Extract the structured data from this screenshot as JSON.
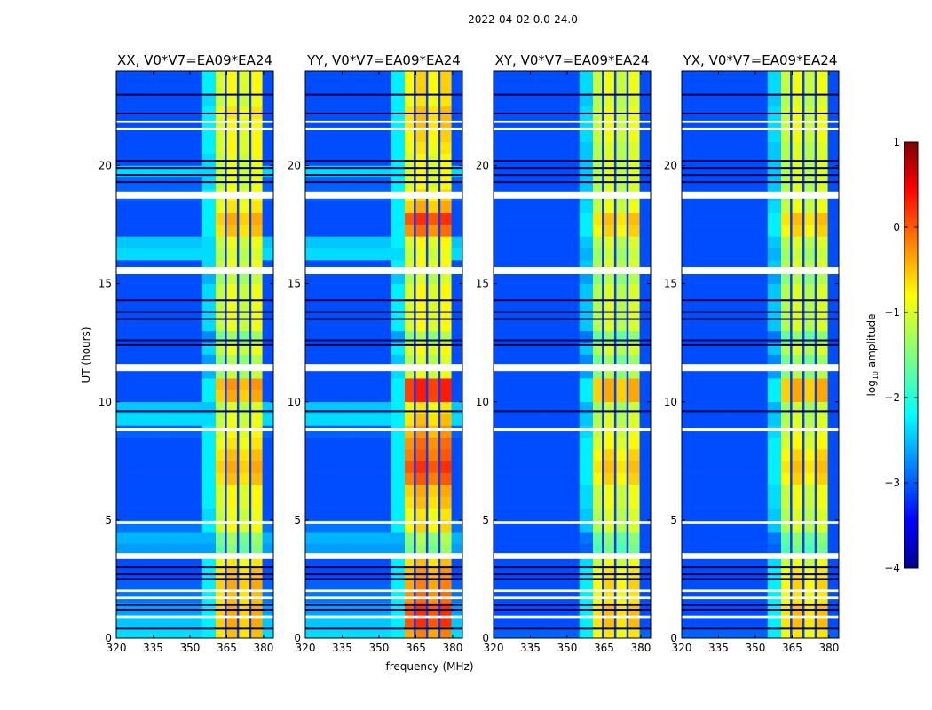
{
  "chart_data": {
    "type": "heatmap",
    "title": "2022-04-02 0.0-24.0",
    "xlabel": "frequency (MHz)",
    "ylabel": "UT (hours)",
    "xlim": [
      320,
      384
    ],
    "ylim": [
      0,
      24
    ],
    "xticks": [
      320,
      335,
      350,
      365,
      380
    ],
    "yticks": [
      0,
      5,
      10,
      15,
      20
    ],
    "colorbar": {
      "label": "log10 amplitude",
      "label_main": "log",
      "label_sub": "10",
      "label_rest": " amplitude",
      "range": [
        -4,
        1
      ],
      "ticks": [
        1,
        0,
        -1,
        -2,
        -3,
        -4
      ],
      "colormap": "jet"
    },
    "tick_minus": "−",
    "freq_columns": [
      [
        320,
        340
      ],
      [
        340,
        355
      ],
      [
        355,
        360.5
      ],
      [
        360.5,
        364.5
      ],
      [
        364.5,
        369.5
      ],
      [
        369.5,
        374.5
      ],
      [
        374.5,
        379.5
      ],
      [
        379.5,
        384
      ]
    ],
    "band_columns": [
      3,
      4,
      5,
      6
    ],
    "row_hours": 0.5,
    "flagged_hours": [
      [
        0.85,
        0.95
      ],
      [
        1.65,
        1.75
      ],
      [
        1.95,
        2.05
      ],
      [
        3.35,
        3.6
      ],
      [
        4.85,
        4.95
      ],
      [
        8.75,
        8.9
      ],
      [
        11.3,
        11.6
      ],
      [
        15.4,
        15.7
      ],
      [
        18.6,
        18.9
      ],
      [
        21.5,
        21.6
      ],
      [
        21.8,
        21.9
      ]
    ],
    "dropout_hours": [
      0.4,
      1.2,
      1.4,
      2.5,
      2.7,
      3.0,
      9.6,
      12.4,
      12.6,
      13.5,
      13.8,
      14.3,
      19.3,
      19.6,
      19.9,
      20.2,
      22.2,
      23.0
    ],
    "panels": [
      {
        "title": "XX, V0*V7=EA09*EA24",
        "background": [
          -2.3,
          -2.4,
          -2.6,
          -2.8,
          -2.9,
          -3,
          -3,
          -2.6,
          -2.5,
          -2.8,
          -3,
          -3,
          -3,
          -3,
          -3,
          -3,
          -3,
          -2.9,
          -2.3,
          -2.4,
          -3,
          -3,
          -3,
          -3,
          -3,
          -3,
          -3,
          -3,
          -3,
          -3,
          -3,
          -3,
          -2.3,
          -2.4,
          -3,
          -3,
          -3,
          -2.9,
          -2.9,
          -2.3,
          -3,
          -3,
          -3,
          -3,
          -3,
          -3,
          -3,
          -3
        ],
        "band": [
          -0.6,
          -0.5,
          -0.5,
          -0.6,
          -0.5,
          -0.6,
          -0.8,
          -1.5,
          -1.4,
          -0.9,
          -1,
          -0.9,
          -0.9,
          -0.6,
          -0.5,
          -0.6,
          -0.8,
          -0.9,
          -1,
          -1.1,
          -0.5,
          -0.4,
          -1.2,
          -1.3,
          -1,
          -1.4,
          -1,
          -1,
          -1,
          -1,
          -1.2,
          -1,
          -1.1,
          -1,
          -0.6,
          -0.5,
          -0.8,
          -0.9,
          -1,
          -1,
          -1,
          -0.9,
          -0.9,
          -0.9,
          -0.8,
          -1,
          -0.9,
          -0.9
        ]
      },
      {
        "title": "YY, V0*V7=EA09*EA24",
        "background": [
          -2.3,
          -2.4,
          -2.6,
          -2.8,
          -2.9,
          -3,
          -3,
          -2.6,
          -2.5,
          -2.8,
          -3,
          -3,
          -3,
          -3,
          -3,
          -3,
          -3,
          -2.9,
          -2.3,
          -2.4,
          -3,
          -3,
          -3,
          -3,
          -3,
          -3,
          -3,
          -3,
          -3,
          -3,
          -3,
          -3,
          -2.3,
          -2.4,
          -3,
          -3,
          -3,
          -2.9,
          -2.9,
          -2.3,
          -3,
          -3,
          -3,
          -3,
          -3,
          -3,
          -3,
          -3
        ],
        "band": [
          -0.3,
          0.1,
          0.1,
          -0.2,
          -0.3,
          -0.4,
          -0.6,
          -1.4,
          -1.3,
          -0.7,
          -0.8,
          -0.6,
          -0.5,
          -0.1,
          0.1,
          -0.1,
          -0.2,
          -0.4,
          -0.6,
          -0.8,
          0.2,
          0.2,
          -1,
          -1.1,
          -0.9,
          -1.3,
          -0.9,
          -0.9,
          -0.9,
          -0.9,
          -1.1,
          -0.9,
          -1,
          -0.9,
          -0.2,
          0.1,
          -0.5,
          -0.7,
          -0.9,
          -0.9,
          -0.9,
          -0.8,
          -0.7,
          -0.6,
          -0.6,
          -0.8,
          -0.7,
          -0.7
        ]
      },
      {
        "title": "XY, V0*V7=EA09*EA24",
        "background": [
          -2.9,
          -3,
          -3,
          -3,
          -3,
          -3,
          -3,
          -3,
          -3,
          -3,
          -3,
          -3,
          -3,
          -3,
          -3,
          -3,
          -3,
          -3,
          -3,
          -3,
          -3,
          -3,
          -3,
          -3,
          -3,
          -3,
          -3,
          -3,
          -3,
          -3,
          -3,
          -3,
          -3,
          -3,
          -3,
          -3,
          -3,
          -3,
          -3,
          -3,
          -3,
          -3,
          -3,
          -3,
          -3,
          -3,
          -3,
          -3
        ],
        "band": [
          -0.8,
          -0.6,
          -0.6,
          -0.8,
          -0.7,
          -0.8,
          -1,
          -1.6,
          -1.5,
          -1.1,
          -1.1,
          -1,
          -1,
          -0.7,
          -0.6,
          -0.7,
          -0.9,
          -1,
          -1.1,
          -1.2,
          -0.5,
          -0.5,
          -1.3,
          -1.4,
          -1.1,
          -1.5,
          -1.1,
          -1.1,
          -1.1,
          -1.1,
          -1.3,
          -1.1,
          -1.2,
          -1.1,
          -0.7,
          -0.6,
          -1,
          -1.1,
          -1.1,
          -1.1,
          -1.1,
          -1.1,
          -1,
          -1,
          -1,
          -1.1,
          -1,
          -1
        ]
      },
      {
        "title": "YX, V0*V7=EA09*EA24",
        "background": [
          -2.9,
          -3,
          -3,
          -3,
          -3,
          -3,
          -3,
          -3,
          -3,
          -3,
          -3,
          -3,
          -3,
          -3,
          -3,
          -3,
          -3,
          -3,
          -3,
          -3,
          -3,
          -3,
          -3,
          -3,
          -3,
          -3,
          -3,
          -3,
          -3,
          -3,
          -3,
          -3,
          -3,
          -3,
          -3,
          -3,
          -3,
          -3,
          -3,
          -3,
          -3,
          -3,
          -3,
          -3,
          -3,
          -3,
          -3,
          -3
        ],
        "band": [
          -0.8,
          -0.6,
          -0.6,
          -0.8,
          -0.7,
          -0.8,
          -1,
          -1.6,
          -1.5,
          -1.1,
          -1.1,
          -1,
          -1,
          -0.7,
          -0.6,
          -0.7,
          -0.9,
          -1,
          -1.1,
          -1.2,
          -0.5,
          -0.5,
          -1.3,
          -1.4,
          -1.1,
          -1.5,
          -1.1,
          -1.1,
          -1.1,
          -1.1,
          -1.3,
          -1.1,
          -1.2,
          -1.1,
          -0.7,
          -0.6,
          -1,
          -1.1,
          -1.1,
          -1.1,
          -1.1,
          -1.1,
          -1,
          -1,
          -1,
          -1.1,
          -1,
          -1
        ]
      }
    ]
  }
}
